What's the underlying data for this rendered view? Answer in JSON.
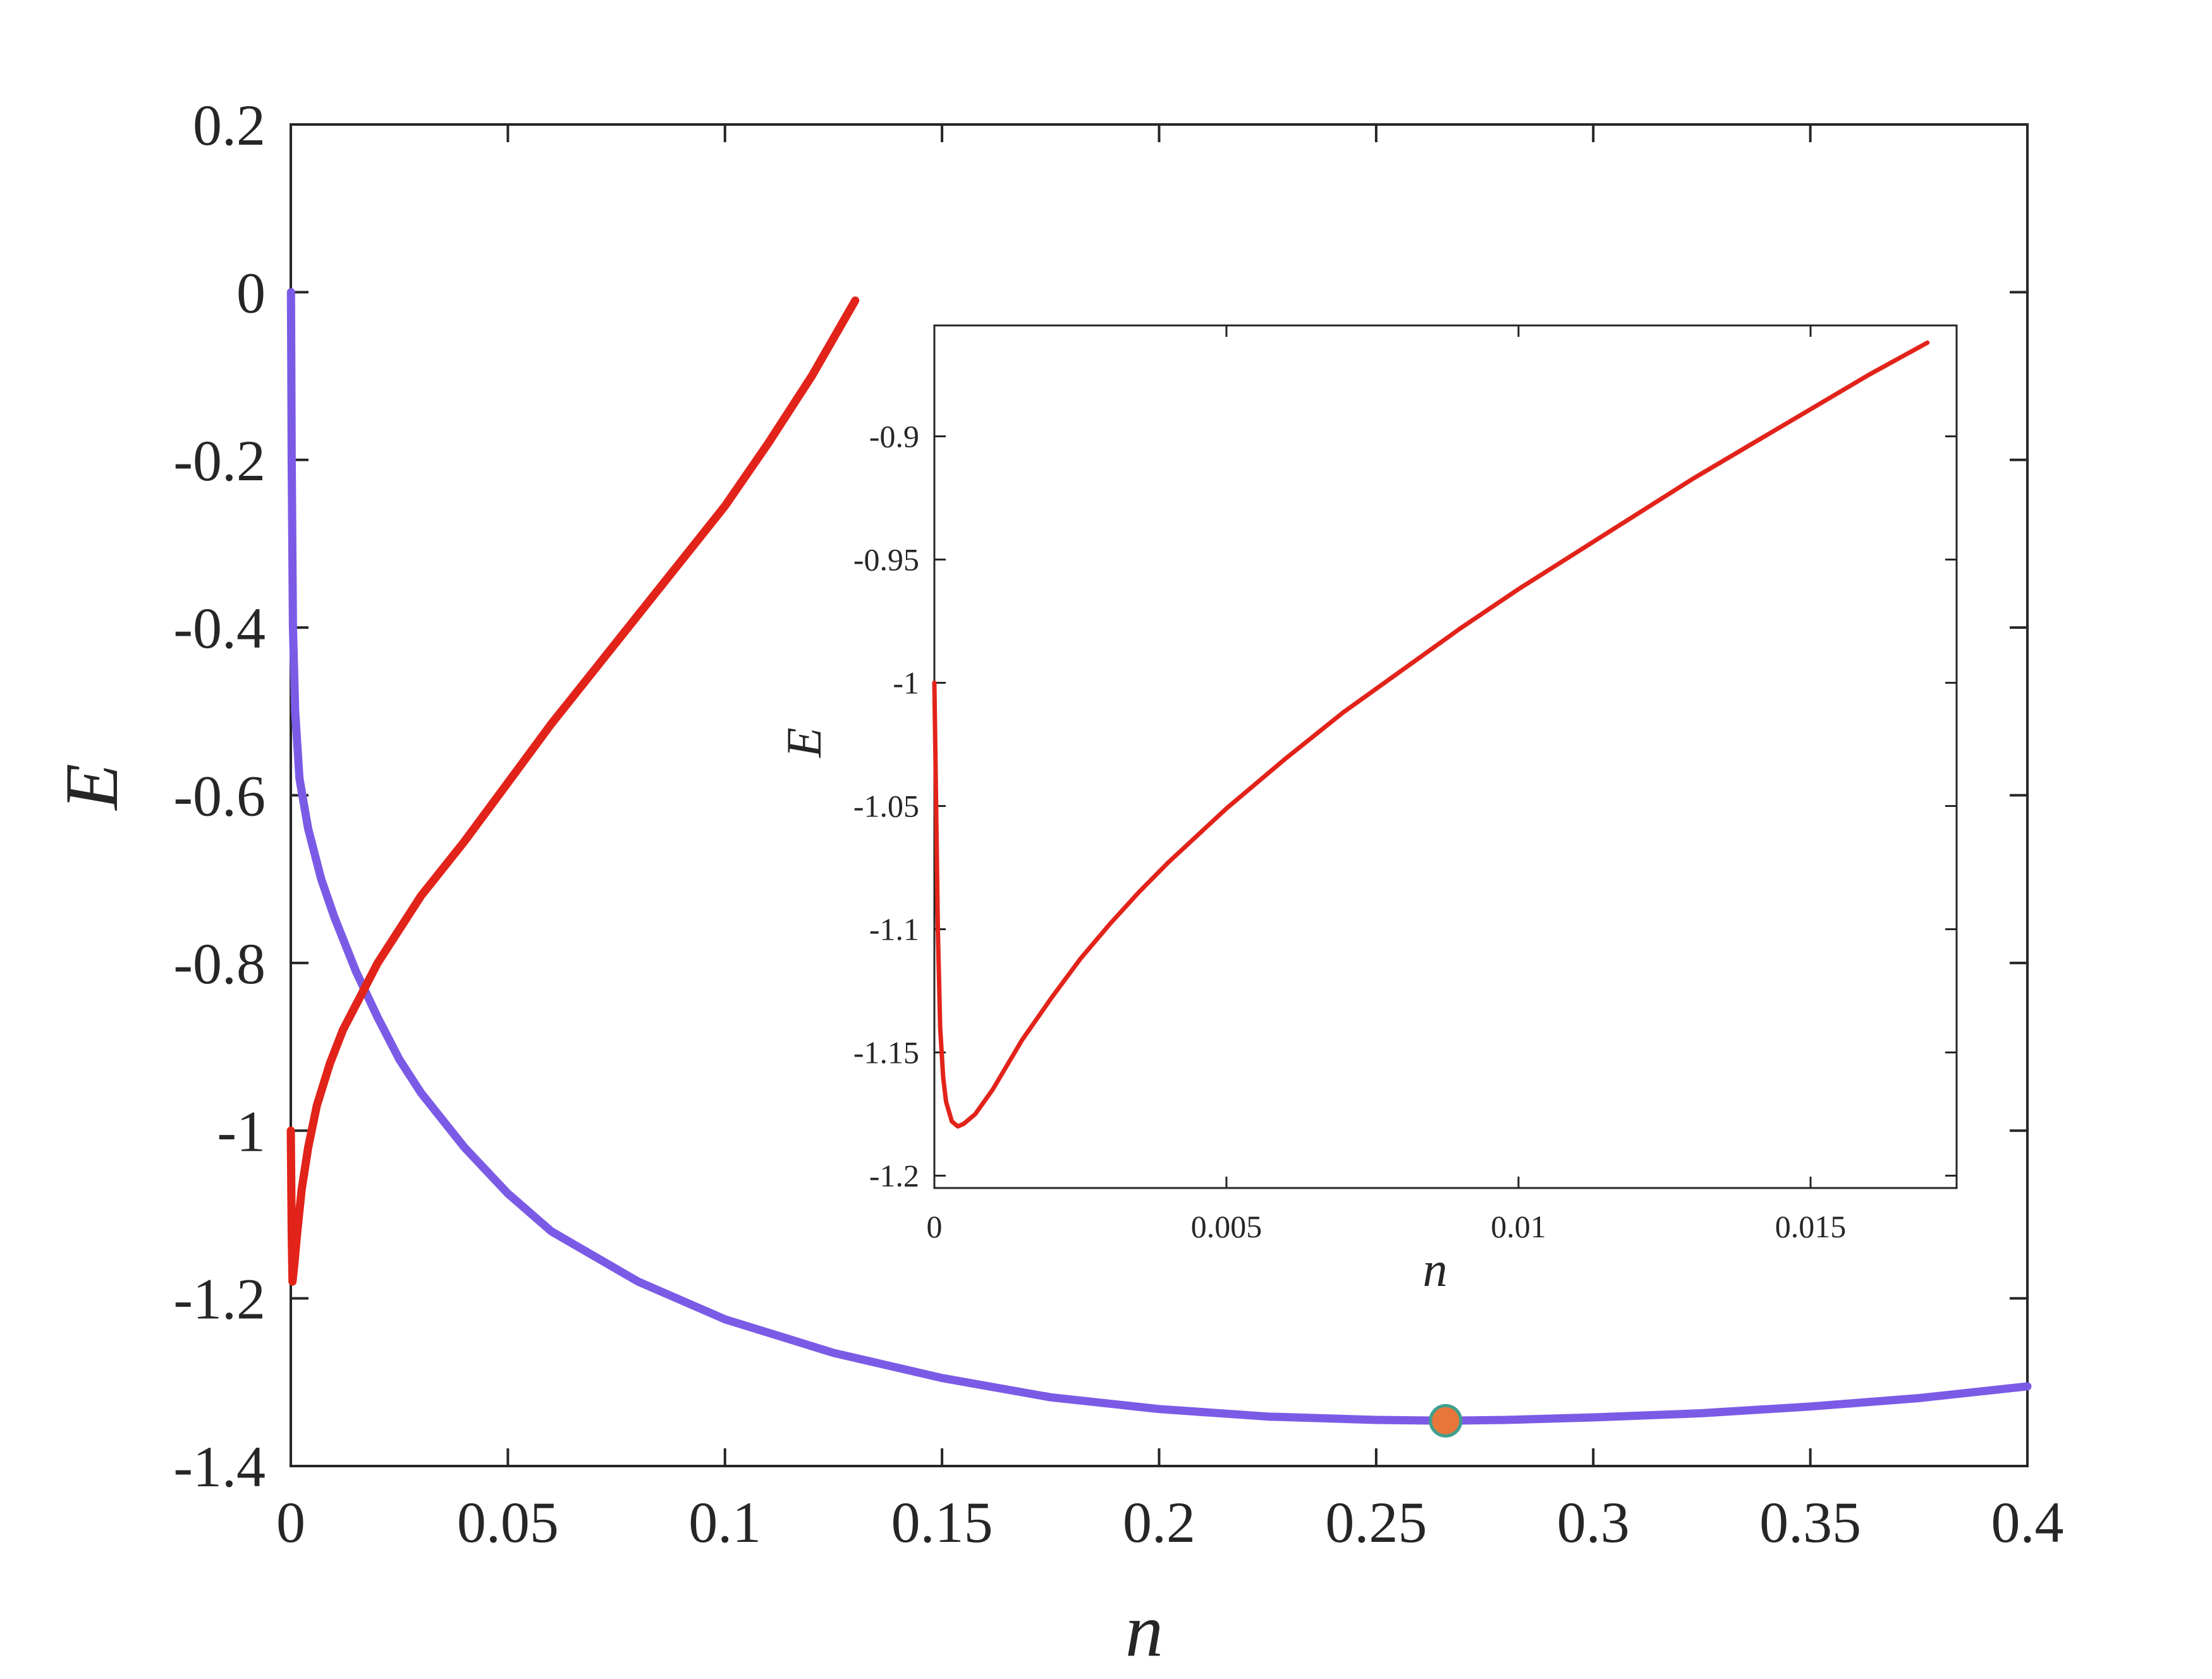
{
  "chart_data": [
    {
      "type": "line",
      "title": "",
      "xlabel": "n",
      "ylabel": "E",
      "xlim": [
        0,
        0.4
      ],
      "ylim": [
        -1.4,
        0.2
      ],
      "xticks": [
        0,
        0.05,
        0.1,
        0.15,
        0.2,
        0.25,
        0.3,
        0.35,
        0.4
      ],
      "xtick_labels": [
        "0",
        "0.05",
        "0.1",
        "0.15",
        "0.2",
        "0.25",
        "0.3",
        "0.35",
        "0.4"
      ],
      "yticks": [
        0.2,
        0,
        -0.2,
        -0.4,
        -0.6,
        -0.8,
        -1,
        -1.2,
        -1.4
      ],
      "ytick_labels": [
        "0.2",
        "0",
        "-0.2",
        "-0.4",
        "-0.6",
        "-0.8",
        "-1",
        "-1.2",
        "-1.4"
      ],
      "grid": false,
      "series": [
        {
          "color": "#7B5BE6",
          "x": [
            5e-05,
            0.0002,
            0.0005,
            0.001,
            0.002,
            0.004,
            0.007,
            0.01,
            0.015,
            0.02,
            0.025,
            0.03,
            0.04,
            0.05,
            0.06,
            0.08,
            0.1,
            0.125,
            0.15,
            0.175,
            0.2,
            0.225,
            0.25,
            0.266,
            0.28,
            0.3,
            0.325,
            0.35,
            0.375,
            0.4
          ],
          "y": [
            0.0,
            -0.2,
            -0.4,
            -0.5,
            -0.58,
            -0.64,
            -0.7,
            -0.745,
            -0.81,
            -0.865,
            -0.915,
            -0.955,
            -1.02,
            -1.075,
            -1.12,
            -1.18,
            -1.225,
            -1.265,
            -1.295,
            -1.318,
            -1.332,
            -1.341,
            -1.345,
            -1.346,
            -1.345,
            -1.342,
            -1.337,
            -1.329,
            -1.319,
            -1.305
          ]
        },
        {
          "color": "#E2231A",
          "x": [
            0.0,
            0.0002,
            0.0004,
            0.0008,
            0.0015,
            0.0025,
            0.004,
            0.006,
            0.009,
            0.012,
            0.016,
            0.02,
            0.025,
            0.03,
            0.04,
            0.05,
            0.06,
            0.07,
            0.08,
            0.09,
            0.1,
            0.11,
            0.12,
            0.13
          ],
          "y": [
            -1.0,
            -1.12,
            -1.18,
            -1.16,
            -1.12,
            -1.07,
            -1.02,
            -0.97,
            -0.92,
            -0.88,
            -0.84,
            -0.8,
            -0.76,
            -0.72,
            -0.655,
            -0.585,
            -0.515,
            -0.45,
            -0.385,
            -0.32,
            -0.255,
            -0.18,
            -0.1,
            -0.01
          ]
        }
      ],
      "marker": {
        "x": 0.266,
        "y": -1.346,
        "fill": "#E8763A",
        "edge": "#3F9F8F"
      }
    },
    {
      "type": "line",
      "title": "",
      "xlabel": "n",
      "ylabel": "E",
      "xlim": [
        0,
        0.0175
      ],
      "ylim": [
        -1.205,
        -0.855
      ],
      "xticks": [
        0,
        0.005,
        0.01,
        0.015
      ],
      "xtick_labels": [
        "0",
        "0.005",
        "0.01",
        "0.015"
      ],
      "yticks": [
        -0.9,
        -0.95,
        -1,
        -1.05,
        -1.1,
        -1.15,
        -1.2
      ],
      "ytick_labels": [
        "-0.9",
        "-0.95",
        "-1",
        "-1.05",
        "-1.1",
        "-1.15",
        "-1.2"
      ],
      "grid": false,
      "series": [
        {
          "color": "#E2231A",
          "x": [
            0.0,
            3e-05,
            6e-05,
            0.0001,
            0.00015,
            0.0002,
            0.0003,
            0.0004,
            0.0005,
            0.0007,
            0.001,
            0.0015,
            0.002,
            0.0025,
            0.003,
            0.0035,
            0.004,
            0.005,
            0.006,
            0.007,
            0.008,
            0.009,
            0.01,
            0.011,
            0.012,
            0.013,
            0.014,
            0.015,
            0.016,
            0.017
          ],
          "y": [
            -1.0,
            -1.05,
            -1.1,
            -1.14,
            -1.16,
            -1.17,
            -1.178,
            -1.18,
            -1.179,
            -1.175,
            -1.165,
            -1.145,
            -1.128,
            -1.112,
            -1.098,
            -1.085,
            -1.073,
            -1.051,
            -1.031,
            -1.012,
            -0.995,
            -0.978,
            -0.962,
            -0.947,
            -0.932,
            -0.917,
            -0.903,
            -0.889,
            -0.875,
            -0.862
          ]
        }
      ]
    }
  ]
}
